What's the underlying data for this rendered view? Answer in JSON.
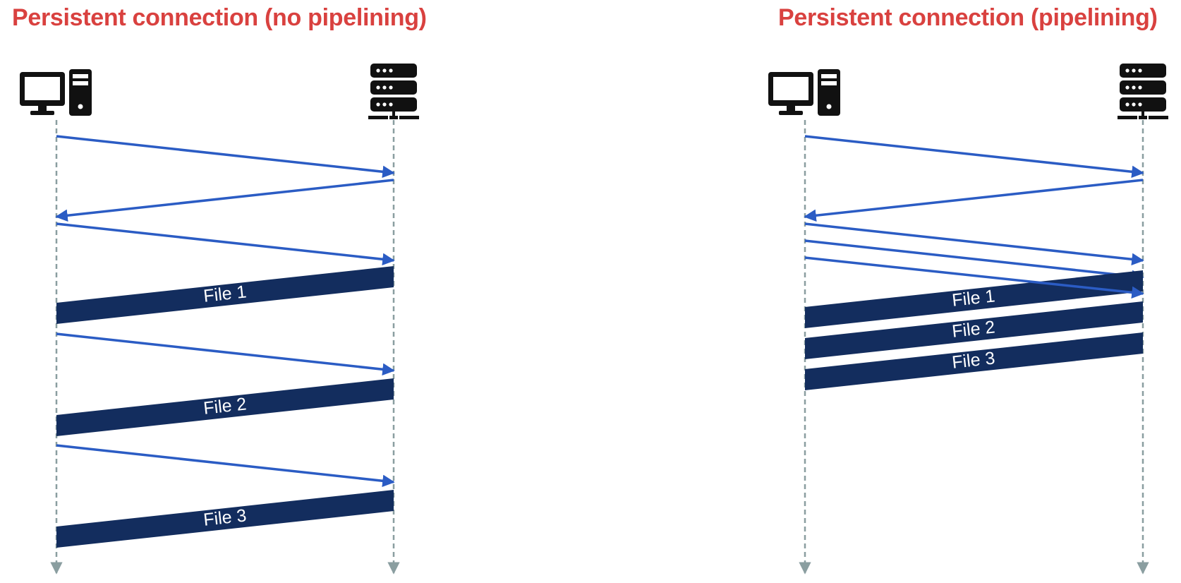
{
  "colors": {
    "title": "#d9413f",
    "arrow": "#2b5cc4",
    "file_bar": "#132d5e",
    "timeline": "#8a9ea0",
    "file_text": "#ffffff",
    "icon": "#111111"
  },
  "panels": [
    {
      "title": "Persistent connection (no pipelining)",
      "client_icon": "desktop-computer-icon",
      "server_icon": "server-rack-icon",
      "files": [
        "File 1",
        "File 2",
        "File 3"
      ]
    },
    {
      "title": "Persistent connection (pipelining)",
      "client_icon": "desktop-computer-icon",
      "server_icon": "server-rack-icon",
      "files": [
        "File 1",
        "File 2",
        "File 3"
      ]
    }
  ]
}
